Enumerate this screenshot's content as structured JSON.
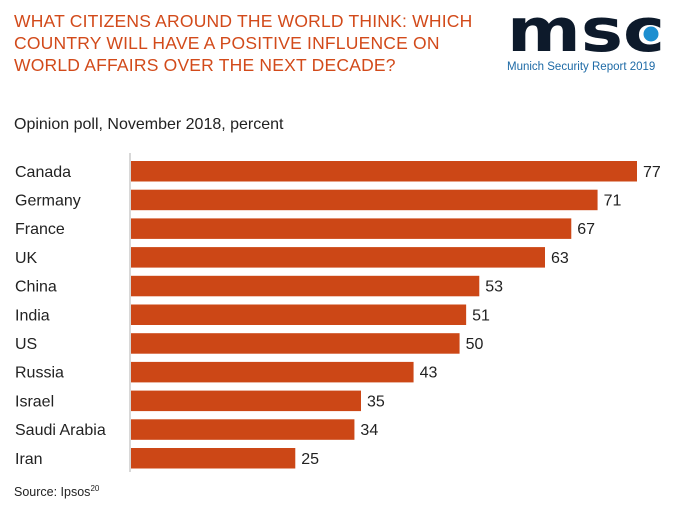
{
  "header": {
    "title_lines": [
      "WHAT CITIZENS AROUND THE WORLD THINK: WHICH",
      "COUNTRY WILL HAVE A POSITIVE INFLUENCE ON",
      "WORLD AFFAIRS OVER THE NEXT DECADE?"
    ],
    "logo_text": "msc",
    "logo_caption": "Munich Security Report 2019",
    "subtitle": "Opinion poll, November 2018, percent"
  },
  "footer": {
    "source_label": "Source: Ipsos",
    "source_footnote": "20"
  },
  "colors": {
    "title": "#d24a1a",
    "bar": "#cc4716",
    "logo_dark": "#0d1a2b",
    "logo_accent": "#1d8fd0"
  },
  "chart_data": {
    "type": "bar",
    "orientation": "horizontal",
    "title": "WHAT CITIZENS AROUND THE WORLD THINK: WHICH COUNTRY WILL HAVE A POSITIVE INFLUENCE ON WORLD AFFAIRS OVER THE NEXT DECADE?",
    "subtitle": "Opinion poll, November 2018, percent",
    "xlabel": "",
    "ylabel": "",
    "categories": [
      "Canada",
      "Germany",
      "France",
      "UK",
      "China",
      "India",
      "US",
      "Russia",
      "Israel",
      "Saudi Arabia",
      "Iran"
    ],
    "values": [
      77,
      71,
      67,
      63,
      53,
      51,
      50,
      43,
      35,
      34,
      25
    ],
    "xlim": [
      0,
      77
    ],
    "grid": false,
    "data_labels": true,
    "unit": "percent"
  }
}
